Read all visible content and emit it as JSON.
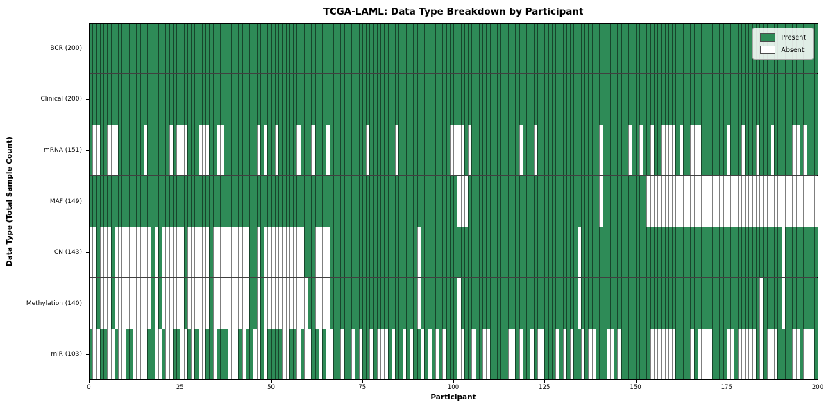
{
  "title": "TCGA-LAML: Data Type Breakdown by Participant",
  "x_axis": {
    "label": "Participant",
    "tick_labels": [
      "0",
      "25",
      "50",
      "75",
      "100",
      "125",
      "150",
      "175",
      "200"
    ],
    "range": [
      0,
      200
    ]
  },
  "y_axis": {
    "label": "Data Type (Total Sample Count)"
  },
  "legend": {
    "items": [
      {
        "key": "present",
        "label": "Present",
        "color": "#2e8b57"
      },
      {
        "key": "absent",
        "label": "Absent",
        "color": "#ffffff"
      }
    ],
    "position": "upper right"
  },
  "colors": {
    "present": "#2e8b57",
    "absent": "#ffffff",
    "cell_edge": "rgba(0,0,0,0.5)",
    "plot_border": "#000000"
  },
  "chart_data": {
    "type": "heatmap",
    "subtype": "presence-absence-matrix",
    "n_participants": 200,
    "x_range": [
      0,
      200
    ],
    "grid": "cell-edges",
    "legend_position": "upper right",
    "rows": [
      {
        "key": "bcr",
        "label": "BCR (200)",
        "total_present": 200,
        "absent": []
      },
      {
        "key": "clinical",
        "label": "Clinical (200)",
        "total_present": 200,
        "absent": []
      },
      {
        "key": "mrna",
        "label": "mRNA (151)",
        "total_present": 151,
        "absent": [
          1,
          2,
          5,
          6,
          7,
          15,
          22,
          24,
          25,
          26,
          30,
          31,
          32,
          35,
          36,
          46,
          48,
          51,
          57,
          61,
          65,
          76,
          84,
          99,
          100,
          101,
          102,
          104,
          118,
          122,
          140,
          148,
          151,
          154,
          157,
          158,
          159,
          160,
          162,
          165,
          166,
          167,
          175,
          179,
          183,
          187,
          193,
          194,
          196
        ]
      },
      {
        "key": "maf",
        "label": "MAF (149)",
        "total_present": 149,
        "absent": [
          101,
          102,
          103,
          140,
          153,
          154,
          155,
          156,
          157,
          158,
          159,
          160,
          161,
          162,
          163,
          164,
          165,
          166,
          167,
          168,
          169,
          170,
          171,
          172,
          173,
          174,
          175,
          176,
          177,
          178,
          179,
          180,
          181,
          182,
          183,
          184,
          185,
          186,
          187,
          188,
          189,
          190,
          191,
          192,
          193,
          194,
          195,
          196,
          197,
          198,
          199
        ]
      },
      {
        "key": "cn",
        "label": "CN (143)",
        "total_present": 143,
        "absent": [
          0,
          1,
          3,
          4,
          5,
          7,
          8,
          9,
          10,
          11,
          12,
          13,
          14,
          15,
          16,
          18,
          20,
          21,
          22,
          23,
          24,
          25,
          27,
          28,
          29,
          30,
          31,
          32,
          34,
          35,
          36,
          37,
          38,
          39,
          40,
          41,
          42,
          43,
          46,
          48,
          49,
          50,
          51,
          52,
          53,
          54,
          55,
          56,
          57,
          58,
          62,
          63,
          64,
          65,
          90,
          134,
          190
        ]
      },
      {
        "key": "methylation",
        "label": "Methylation (140)",
        "total_present": 140,
        "absent": [
          0,
          1,
          3,
          4,
          5,
          7,
          8,
          9,
          10,
          11,
          12,
          13,
          14,
          15,
          16,
          18,
          20,
          21,
          22,
          23,
          24,
          25,
          27,
          28,
          29,
          30,
          31,
          32,
          34,
          35,
          36,
          37,
          38,
          39,
          40,
          41,
          42,
          43,
          46,
          48,
          49,
          50,
          51,
          52,
          53,
          54,
          55,
          56,
          57,
          58,
          59,
          62,
          63,
          64,
          65,
          90,
          101,
          134,
          184,
          190
        ]
      },
      {
        "key": "mir",
        "label": "miR (103)",
        "total_present": 103,
        "absent": [
          1,
          2,
          5,
          6,
          8,
          9,
          12,
          13,
          14,
          15,
          18,
          19,
          21,
          22,
          25,
          26,
          28,
          30,
          31,
          34,
          38,
          39,
          40,
          42,
          45,
          46,
          48,
          53,
          54,
          57,
          59,
          60,
          63,
          65,
          66,
          69,
          72,
          74,
          77,
          79,
          80,
          81,
          83,
          86,
          88,
          91,
          93,
          95,
          97,
          101,
          102,
          105,
          108,
          109,
          115,
          116,
          118,
          121,
          123,
          124,
          128,
          130,
          132,
          135,
          137,
          138,
          142,
          143,
          145,
          154,
          155,
          156,
          157,
          158,
          159,
          160,
          165,
          167,
          168,
          169,
          170,
          175,
          176,
          178,
          179,
          180,
          181,
          182,
          184,
          186,
          187,
          188,
          193,
          194,
          196,
          197,
          198
        ]
      }
    ]
  }
}
